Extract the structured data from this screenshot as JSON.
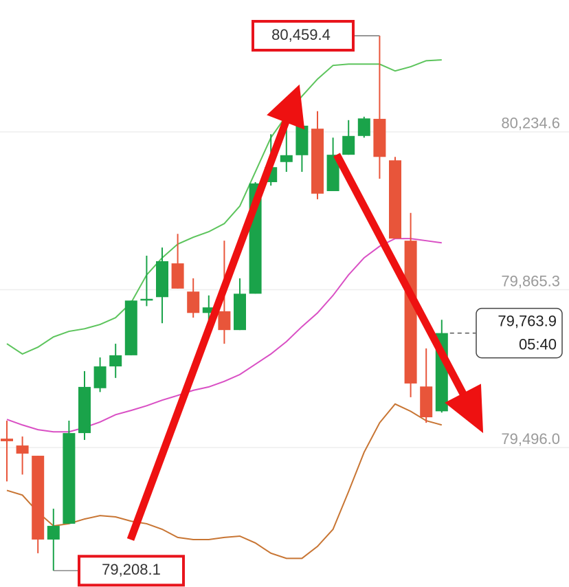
{
  "chart_data": {
    "type": "candlestick",
    "ylim": [
      79170,
      80543
    ],
    "yticks": [
      {
        "value": 80234.6,
        "label": "80,234.6"
      },
      {
        "value": 79865.3,
        "label": "79,865.3"
      },
      {
        "value": 79496.0,
        "label": "79,496.0"
      }
    ],
    "grid": true,
    "up_color": "#1aa34a",
    "down_color": "#e8553a",
    "open": [
      79517,
      79501,
      79477,
      79281,
      79318,
      79530,
      79635,
      79686,
      79712,
      79840,
      79848,
      79927,
      79861,
      79811,
      79815,
      79771,
      79856,
      80117,
      80164,
      80180,
      80242,
      80096,
      80181,
      80225,
      80265,
      80168,
      79980,
      79639,
      79581
    ],
    "high": [
      79559,
      79522,
      79477,
      79353,
      79559,
      79675,
      79707,
      79739,
      79840,
      79945,
      79964,
      79996,
      79892,
      79852,
      79980,
      79892,
      80117,
      80229,
      80254,
      80254,
      80283,
      80221,
      80262,
      80270,
      80459.4,
      80176,
      80045,
      79728,
      79795
    ],
    "low": [
      79417,
      79433,
      79249,
      79208.1,
      79318,
      79514,
      79626,
      79659,
      79712,
      79827,
      79787,
      79868,
      79800,
      79787,
      79739,
      79771,
      79856,
      80109,
      80141,
      80141,
      80077,
      80096,
      80181,
      80221,
      80125,
      79985,
      79614,
      79554,
      79578
    ],
    "close": [
      79511,
      79482,
      79281,
      79313,
      79530,
      79638,
      79686,
      79712,
      79840,
      79844,
      79932,
      79868,
      79811,
      79824,
      79771,
      79856,
      80114,
      80152,
      80180,
      80249,
      80090,
      80181,
      80225,
      80266,
      80176,
      79985,
      79646,
      79567,
      79763.9
    ],
    "bands": [
      {
        "color": "#5cc45c",
        "values": [
          79739,
          79715,
          79731,
          79755,
          79768,
          79774,
          79784,
          79800,
          79835,
          79900,
          79940,
          79972,
          79988,
          80001,
          80020,
          80061,
          80141,
          80221,
          80273,
          80318,
          80358,
          80390,
          80393,
          80393,
          80393,
          80377,
          80387,
          80401,
          80403
        ]
      },
      {
        "color": "#d94fc4",
        "values": [
          79562,
          79549,
          79538,
          79533,
          79533,
          79543,
          79556,
          79573,
          79583,
          79594,
          79607,
          79618,
          79630,
          79638,
          79651,
          79667,
          79691,
          79715,
          79744,
          79779,
          79811,
          79852,
          79900,
          79940,
          79967,
          79985,
          79985,
          79980,
          79975
        ]
      },
      {
        "color": "#c87533",
        "values": [
          79396,
          79385,
          79345,
          79313,
          79318,
          79329,
          79337,
          79334,
          79324,
          79318,
          79305,
          79286,
          79281,
          79281,
          79286,
          79289,
          79273,
          79249,
          79237,
          79237,
          79265,
          79305,
          79393,
          79485,
          79554,
          79598,
          79581,
          79559,
          79549
        ]
      }
    ],
    "high_label": "80,459.4",
    "low_label": "79,208.1",
    "last_price": {
      "value": 79763.9,
      "label": "79,763.9"
    },
    "countdown": "05:40"
  }
}
